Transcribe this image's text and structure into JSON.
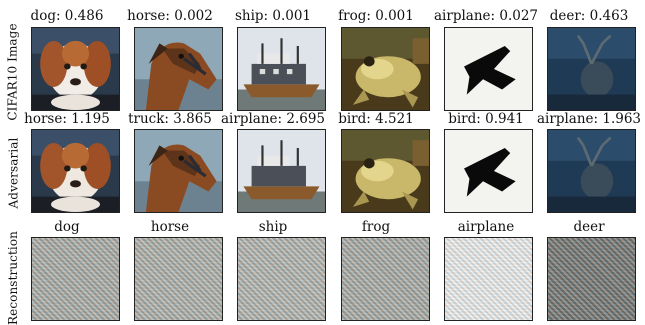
{
  "row_labels": [
    "CIFAR10 Image",
    "Adversarial",
    "Reconstruction"
  ],
  "rows": [
    {
      "titles": [
        "dog: 0.486",
        "horse: 0.002",
        "ship: 0.001",
        "frog: 0.001",
        "airplane: 0.027",
        "deer: 0.463"
      ]
    },
    {
      "titles": [
        "horse: 1.195",
        "truck: 3.865",
        "airplane: 2.695",
        "bird: 4.521",
        "bird: 0.941",
        "airplane: 1.963"
      ]
    },
    {
      "titles": [
        "dog",
        "horse",
        "ship",
        "frog",
        "airplane",
        "deer"
      ]
    }
  ],
  "colors": {
    "text": "#111111",
    "frame": "#222222",
    "recon_gray": "#a9aba3",
    "recon_white": "#f4f5f2",
    "recon_dark": "#6b6e68"
  }
}
